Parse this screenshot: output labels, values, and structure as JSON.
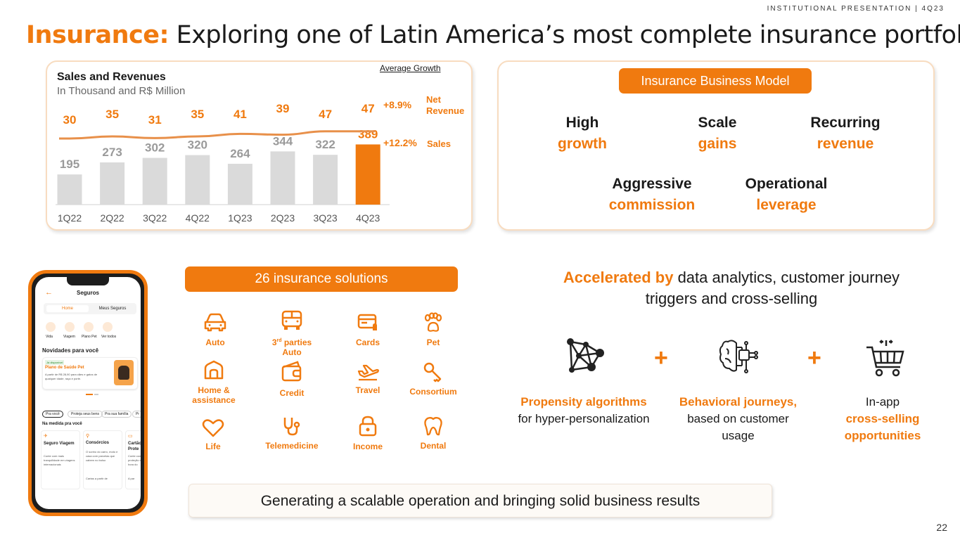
{
  "header": {
    "tag": "INSTITUTIONAL PRESENTATION | 4Q23",
    "title_prefix": "Insurance:",
    "title_rest": " Exploring one of Latin America’s most complete insurance portfolio"
  },
  "chart_data": {
    "type": "bar",
    "title": "Sales and Revenues",
    "subtitle": "In Thousand and R$ Million",
    "categories": [
      "1Q22",
      "2Q22",
      "3Q22",
      "4Q22",
      "1Q23",
      "2Q23",
      "3Q23",
      "4Q23"
    ],
    "series": [
      {
        "name": "Sales",
        "chart_type": "bar",
        "values": [
          195,
          273,
          302,
          320,
          264,
          344,
          322,
          389
        ],
        "average_growth": "+12.2%",
        "color": "#dadada",
        "highlight_color": "#f07a0f"
      },
      {
        "name": "Net Revenue",
        "chart_type": "line",
        "values": [
          30,
          35,
          31,
          35,
          41,
          39,
          47,
          47
        ],
        "average_growth": "+8.9%",
        "color": "#e8904a"
      }
    ],
    "growth_header": "Average Growth",
    "legend_net": [
      "Net",
      "Revenue"
    ],
    "legend_sales": "Sales"
  },
  "model": {
    "title": "Insurance Business Model",
    "items": [
      {
        "line1": "High",
        "line2": "growth"
      },
      {
        "line1": "Scale",
        "line2": "gains"
      },
      {
        "line1": "Recurring",
        "line2": "revenue"
      },
      {
        "line1": "Aggressive",
        "line2": "commission"
      },
      {
        "line1": "Operational",
        "line2": "leverage"
      }
    ]
  },
  "phone": {
    "header": "Seguros",
    "tabs": [
      "Home",
      "Meus Seguros"
    ],
    "quick": [
      "Vida",
      "Viagem",
      "Plano Pet",
      "Ver todos"
    ],
    "section1": "Novidades para você",
    "promo_tag": "Já disponível",
    "promo_title": "Plano de Saúde Pet",
    "promo_text": "A partir de R$ 28,90 para cães e gatos de qualquer idade, raça e porte.",
    "chips": [
      "Pra você",
      "Proteja seus bens",
      "Pra sua família",
      "Pr"
    ],
    "section2": "Na medida pra você",
    "cards": [
      {
        "title": "Seguro Viagem",
        "text": "Conte com mais tranquilidade em viagens internacionais"
      },
      {
        "title": "Consórcios",
        "text": "O sonho do carro, moto e casa com parcelas que cabem no bolso",
        "foot": "Cartas a partir de"
      },
      {
        "title": "Cartão Prote",
        "text": "Conte com proteção na hora do sufoco",
        "foot": "A par"
      }
    ]
  },
  "solutions": {
    "title": "26 insurance solutions",
    "items": [
      {
        "label": "Auto",
        "icon": "car-icon"
      },
      {
        "label": "3rd parties Auto",
        "sup": "rd",
        "icon": "car-front-icon"
      },
      {
        "label": "Cards",
        "icon": "card-icon"
      },
      {
        "label": "Pet",
        "icon": "paw-icon"
      },
      {
        "label": "Home & assistance",
        "icon": "house-icon"
      },
      {
        "label": "Credit",
        "icon": "wallet-icon"
      },
      {
        "label": "Travel",
        "icon": "plane-icon"
      },
      {
        "label": "Consortium",
        "icon": "key-icon"
      },
      {
        "label": "Life",
        "icon": "heart-icon"
      },
      {
        "label": "Telemedicine",
        "icon": "stethoscope-icon"
      },
      {
        "label": "Income",
        "icon": "lock-icon"
      },
      {
        "label": "Dental",
        "icon": "tooth-icon"
      }
    ]
  },
  "accelerated": {
    "bold": "Accelerated by",
    "rest": " data analytics, customer journey triggers and cross-selling",
    "features": [
      {
        "bold": "Propensity algorithms",
        "rest": " for hyper-personalization",
        "icon": "network-icon"
      },
      {
        "bold": "Behavioral journeys,",
        "rest": " based on customer usage",
        "icon": "brain-chip-icon"
      },
      {
        "pre": "In-app",
        "bold": "cross-selling opportunities",
        "icon": "cart-icon"
      }
    ],
    "plus": "+"
  },
  "footer": {
    "banner": "Generating a scalable operation and bringing solid business results",
    "page": "22"
  }
}
